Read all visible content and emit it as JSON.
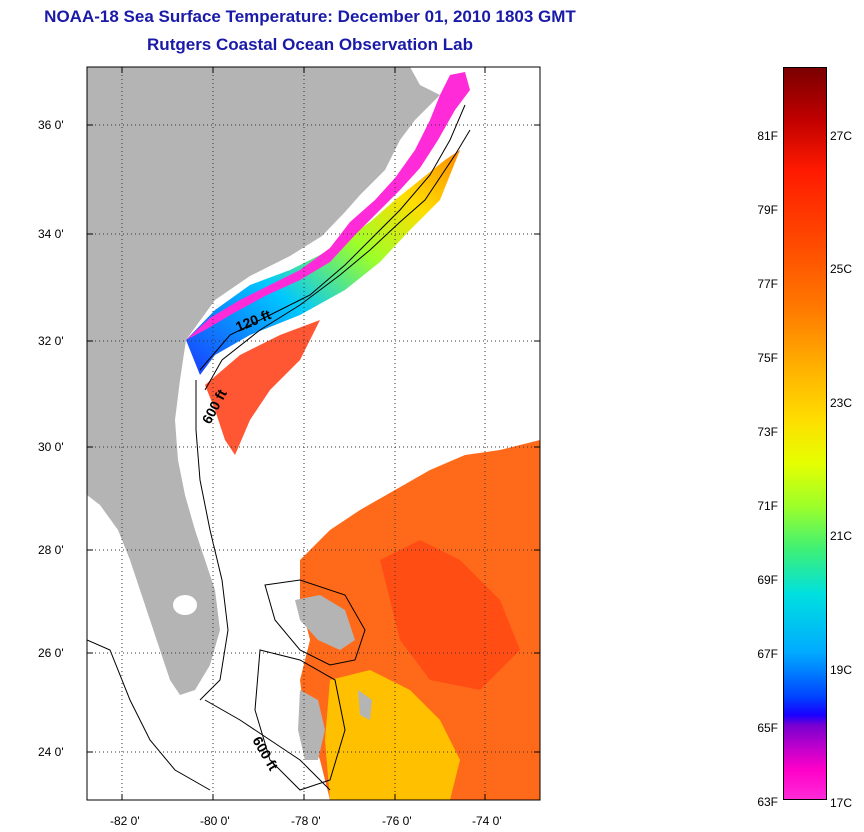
{
  "title": {
    "line1": "NOAA-18 Sea Surface Temperature:  December 01, 2010 1803 GMT",
    "line2": "Rutgers Coastal Ocean Observation Lab"
  },
  "map": {
    "lat_labels": [
      "36 0'",
      "34 0'",
      "32 0'",
      "30 0'",
      "28 0'",
      "26 0'",
      "24 0'"
    ],
    "lon_labels": [
      "-82 0'",
      "-80 0'",
      "-78 0'",
      "-76 0'",
      "-74 0'"
    ],
    "contours": {
      "c120": "120 ft",
      "c600a": "600 ft",
      "c600b": "600 ft"
    },
    "colors": {
      "land": "#b4b4b4",
      "ocean": "#ffffff",
      "grid": "#333333"
    }
  },
  "colorbar": {
    "f_labels": [
      "81F",
      "79F",
      "77F",
      "75F",
      "73F",
      "71F",
      "69F",
      "67F",
      "65F",
      "63F"
    ],
    "c_labels": [
      "27C",
      "25C",
      "23C",
      "21C",
      "19C",
      "17C"
    ]
  }
}
